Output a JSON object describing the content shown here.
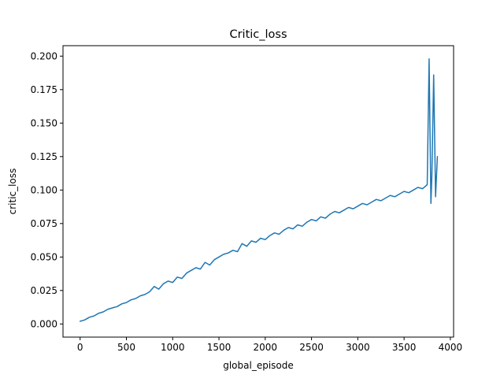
{
  "chart_data": {
    "type": "line",
    "title": "Critic_loss",
    "xlabel": "global_episode",
    "ylabel": "critic_loss",
    "xlim": [
      -185,
      4035
    ],
    "ylim": [
      -0.0098,
      0.2078
    ],
    "xticks": [
      0,
      500,
      1000,
      1500,
      2000,
      2500,
      3000,
      3500,
      4000
    ],
    "xtick_labels": [
      "0",
      "500",
      "1000",
      "1500",
      "2000",
      "2500",
      "3000",
      "3500",
      "4000"
    ],
    "yticks": [
      0.0,
      0.025,
      0.05,
      0.075,
      0.1,
      0.125,
      0.15,
      0.175,
      0.2
    ],
    "ytick_labels": [
      "0.000",
      "0.025",
      "0.050",
      "0.075",
      "0.100",
      "0.125",
      "0.150",
      "0.175",
      "0.200"
    ],
    "grid": false,
    "legend": "none",
    "color": "#1f77b4",
    "series": [
      {
        "x": [
          0,
          50,
          100,
          150,
          200,
          250,
          300,
          350,
          400,
          450,
          500,
          550,
          600,
          650,
          700,
          750,
          800,
          850,
          900,
          950,
          1000,
          1050,
          1100,
          1150,
          1200,
          1250,
          1300,
          1350,
          1400,
          1450,
          1500,
          1550,
          1600,
          1650,
          1700,
          1750,
          1800,
          1850,
          1900,
          1950,
          2000,
          2050,
          2100,
          2150,
          2200,
          2250,
          2300,
          2350,
          2400,
          2450,
          2500,
          2550,
          2600,
          2650,
          2700,
          2750,
          2800,
          2850,
          2900,
          2950,
          3000,
          3050,
          3100,
          3150,
          3200,
          3250,
          3300,
          3350,
          3400,
          3450,
          3500,
          3550,
          3600,
          3650,
          3700,
          3750,
          3770,
          3790,
          3800,
          3820,
          3840,
          3860
        ],
        "y": [
          0.002,
          0.003,
          0.005,
          0.006,
          0.008,
          0.009,
          0.011,
          0.012,
          0.013,
          0.015,
          0.016,
          0.018,
          0.019,
          0.021,
          0.022,
          0.024,
          0.028,
          0.026,
          0.03,
          0.032,
          0.031,
          0.035,
          0.034,
          0.038,
          0.04,
          0.042,
          0.041,
          0.046,
          0.044,
          0.048,
          0.05,
          0.052,
          0.053,
          0.055,
          0.054,
          0.06,
          0.058,
          0.062,
          0.061,
          0.064,
          0.063,
          0.066,
          0.068,
          0.067,
          0.07,
          0.072,
          0.071,
          0.074,
          0.073,
          0.076,
          0.078,
          0.077,
          0.08,
          0.079,
          0.082,
          0.084,
          0.083,
          0.085,
          0.087,
          0.086,
          0.088,
          0.09,
          0.089,
          0.091,
          0.093,
          0.092,
          0.094,
          0.096,
          0.095,
          0.097,
          0.099,
          0.098,
          0.1,
          0.102,
          0.101,
          0.104,
          0.198,
          0.09,
          0.11,
          0.186,
          0.095,
          0.125
        ]
      }
    ]
  }
}
